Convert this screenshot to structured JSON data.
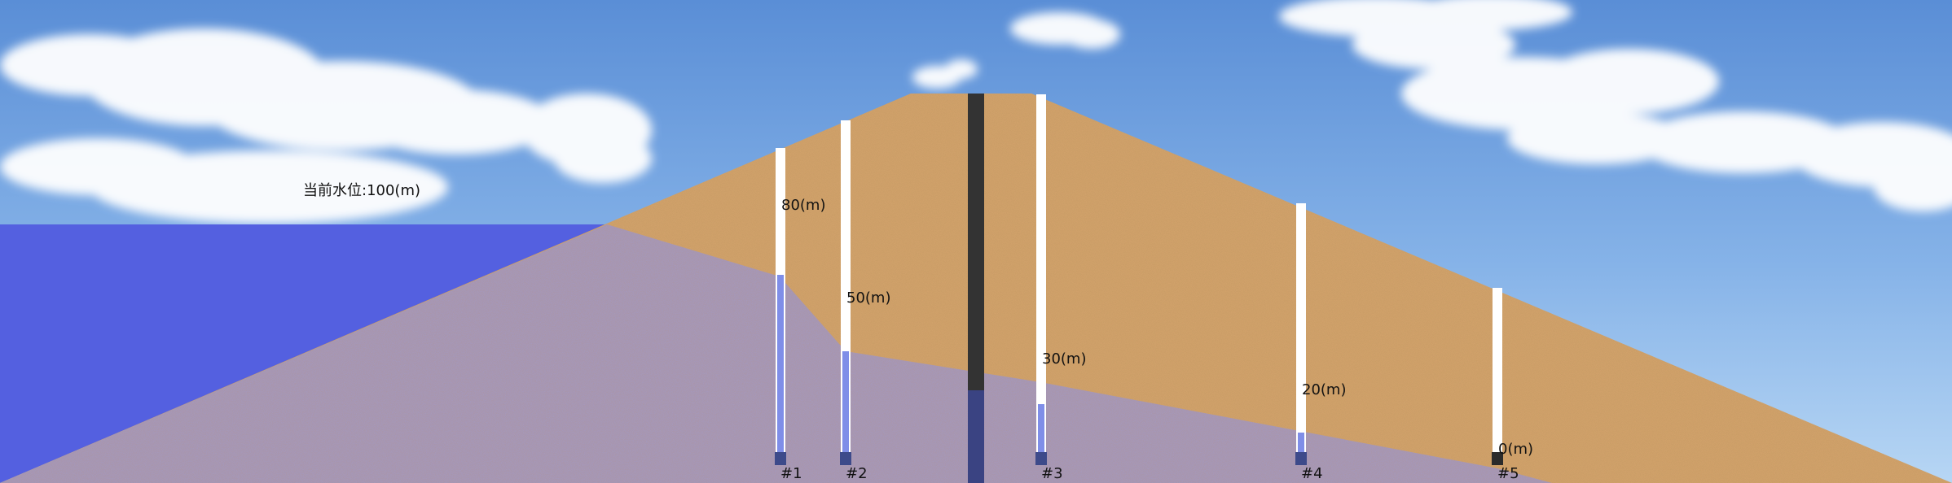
{
  "water_level_label": "当前水位:100(m)",
  "colors": {
    "sky_top": "#5b8fd6",
    "sky_bottom": "#a9cdf1",
    "reservoir_water": "#5460e0",
    "seepage": "#9f9ad0",
    "dam_soil": "#d7a56e",
    "core_wall": "#333333",
    "pipe": "#ffffff",
    "pipe_water": "#7f8ee8",
    "sensor": "#3d4a8a",
    "sensor_dry": "#2b2b2b"
  },
  "piezometers": [
    {
      "id": "#1",
      "reading": "80(m)"
    },
    {
      "id": "#2",
      "reading": "50(m)"
    },
    {
      "id": "#3",
      "reading": "30(m)"
    },
    {
      "id": "#4",
      "reading": "20(m)"
    },
    {
      "id": "#5",
      "reading": "0(m)"
    }
  ]
}
